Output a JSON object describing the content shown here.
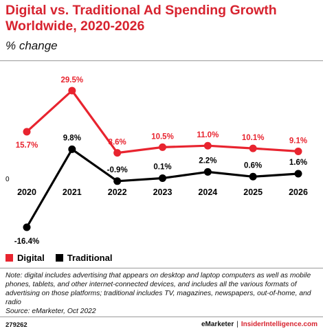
{
  "header": {
    "title": "Digital vs. Traditional Ad Spending Growth Worldwide, 2020-2026",
    "subtitle": "% change"
  },
  "chart_data": {
    "type": "line",
    "title": "Digital vs. Traditional Ad Spending Growth Worldwide, 2020-2026",
    "subtitle": "% change",
    "x": [
      "2020",
      "2021",
      "2022",
      "2023",
      "2024",
      "2025",
      "2026"
    ],
    "zero_label": "0",
    "ylim": [
      -16.4,
      29.5
    ],
    "grid": false,
    "legend_position": "bottom-left",
    "series": [
      {
        "name": "Digital",
        "color": "#e8242f",
        "values": [
          15.7,
          29.5,
          8.6,
          10.5,
          11.0,
          10.1,
          9.1
        ],
        "labels": [
          "15.7%",
          "29.5%",
          "8.6%",
          "10.5%",
          "11.0%",
          "10.1%",
          "9.1%"
        ]
      },
      {
        "name": "Traditional",
        "color": "#000000",
        "values": [
          -16.4,
          9.8,
          -0.9,
          0.1,
          2.2,
          0.6,
          1.6
        ],
        "labels": [
          "-16.4%",
          "9.8%",
          "-0.9%",
          "0.1%",
          "2.2%",
          "0.6%",
          "1.6%"
        ]
      }
    ]
  },
  "legend": {
    "digital_label": "Digital",
    "traditional_label": "Traditional",
    "digital_color": "#e8242f",
    "traditional_color": "#000000"
  },
  "note": {
    "text": "Note: digital includes advertising that appears on desktop and laptop computers as well as mobile phones, tablets, and other internet-connected devices, and includes all the various formats of advertising on those platforms; traditional includes TV, magazines, newspapers, out-of-home, and radio",
    "source": "Source: eMarketer, Oct 2022"
  },
  "footer": {
    "chart_id": "279262",
    "brand": "eMarketer",
    "separator": "|",
    "site": "InsiderIntelligence.com"
  }
}
